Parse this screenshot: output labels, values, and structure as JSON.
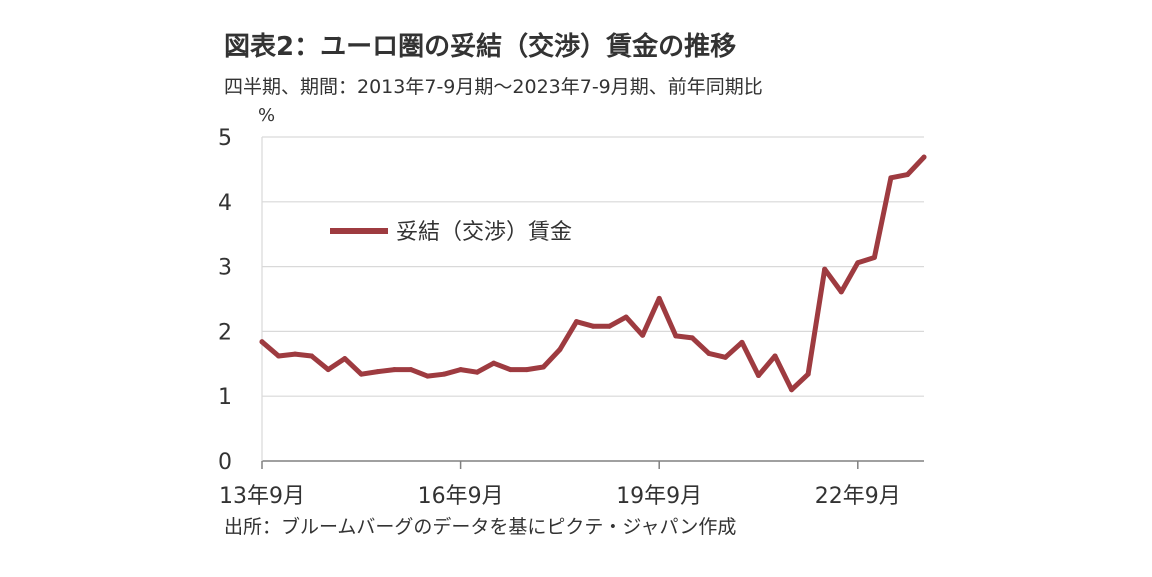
{
  "colors": {
    "series": "#9E3B40",
    "grid": "#D9D9D9",
    "axis": "#808080",
    "text": "#333333"
  },
  "chart_data": {
    "type": "line",
    "title": "図表2：ユーロ圏の妥結（交渉）賃金の推移",
    "subtitle": "四半期、期間：2013年7-9月期～2023年7-9月期、前年同期比",
    "ylabel": "%",
    "xlabel": "",
    "ylim": [
      0,
      5
    ],
    "yticks": [
      "0",
      "1",
      "2",
      "3",
      "4",
      "5"
    ],
    "xtick_labels": [
      {
        "label": "13年9月",
        "index": 0
      },
      {
        "label": "16年9月",
        "index": 12
      },
      {
        "label": "19年9月",
        "index": 24
      },
      {
        "label": "22年9月",
        "index": 36
      }
    ],
    "grid": "horizontal",
    "legend_position": "upper-left",
    "source": "出所：ブルームバーグのデータを基にピクテ・ジャパン作成",
    "x": [
      "2013Q3",
      "2013Q4",
      "2014Q1",
      "2014Q2",
      "2014Q3",
      "2014Q4",
      "2015Q1",
      "2015Q2",
      "2015Q3",
      "2015Q4",
      "2016Q1",
      "2016Q2",
      "2016Q3",
      "2016Q4",
      "2017Q1",
      "2017Q2",
      "2017Q3",
      "2017Q4",
      "2018Q1",
      "2018Q2",
      "2018Q3",
      "2018Q4",
      "2019Q1",
      "2019Q2",
      "2019Q3",
      "2019Q4",
      "2020Q1",
      "2020Q2",
      "2020Q3",
      "2020Q4",
      "2021Q1",
      "2021Q2",
      "2021Q3",
      "2021Q4",
      "2022Q1",
      "2022Q2",
      "2022Q3",
      "2022Q4",
      "2023Q1",
      "2023Q2",
      "2023Q3"
    ],
    "series": [
      {
        "name": "妥結（交渉）賃金",
        "values": [
          1.84,
          1.62,
          1.65,
          1.62,
          1.41,
          1.58,
          1.34,
          1.38,
          1.41,
          1.41,
          1.31,
          1.34,
          1.41,
          1.37,
          1.51,
          1.41,
          1.41,
          1.45,
          1.72,
          2.15,
          2.08,
          2.08,
          2.22,
          1.94,
          2.51,
          1.93,
          1.9,
          1.66,
          1.6,
          1.83,
          1.32,
          1.62,
          1.1,
          1.34,
          2.96,
          2.61,
          3.06,
          3.14,
          4.37,
          4.42,
          4.69
        ]
      }
    ]
  }
}
